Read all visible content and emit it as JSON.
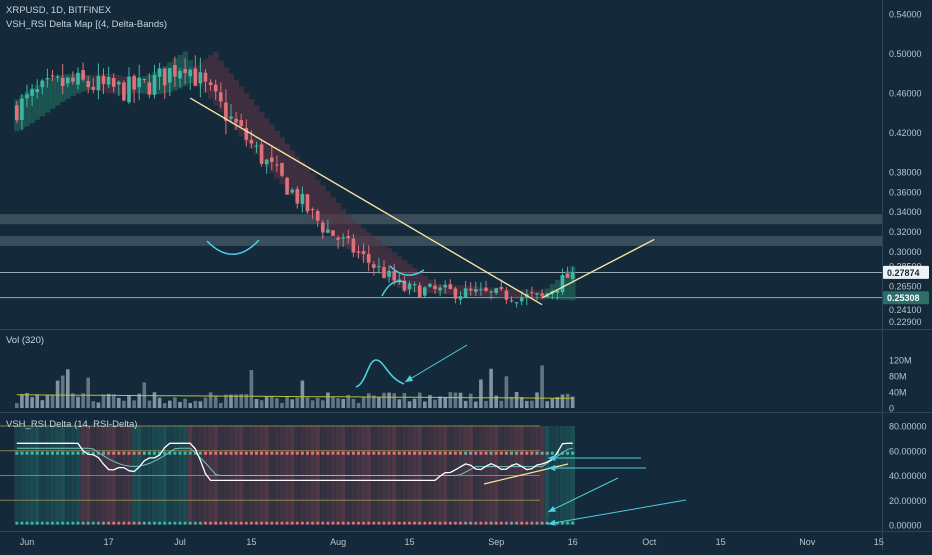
{
  "header": {
    "symbol_line": "XRPUSD, 1D, BITFINEX",
    "indicator_line": "VSH_RSI Delta Map [(4, Delta-Bands)"
  },
  "volume_pane": {
    "label": "Vol (320)"
  },
  "rsi_pane": {
    "label": "VSH_RSI Delta (14, RSI-Delta)"
  },
  "colors": {
    "background": "#142a3a",
    "bull": "#3fb6a4",
    "bear": "#e0707a",
    "trendline": "#f2e3a0",
    "support_band": "#9aa8b3",
    "annotation": "#4dd0e1",
    "rsi_line": "#ffffff"
  },
  "chart_data": [
    {
      "type": "candlestick",
      "pane": "price",
      "y_ticks": [
        "0.54000",
        "0.50000",
        "0.46000",
        "0.42000",
        "0.38000",
        "0.36000",
        "0.34000",
        "0.32000",
        "0.30000",
        "0.28500",
        "0.26500",
        "0.24100",
        "0.22900"
      ],
      "price_markers": [
        {
          "label": "0.27874",
          "value": 0.27874,
          "style": "white"
        },
        {
          "label": "0.25308",
          "value": 0.25308,
          "style": "teal"
        }
      ],
      "horizontal_levels": [
        0.3325,
        0.3105,
        0.2785,
        0.2531
      ],
      "key_closes": [
        {
          "date": "Jul 02",
          "value": 0.49
        },
        {
          "date": "Jul 17",
          "value": 0.395
        },
        {
          "date": "Jul 29",
          "value": 0.325
        },
        {
          "date": "Aug 14",
          "value": 0.262
        },
        {
          "date": "Sep 10",
          "value": 0.253
        },
        {
          "date": "Sep 16",
          "value": 0.279
        }
      ],
      "trendlines": [
        {
          "from": {
            "date": "Jul 03",
            "value": 0.455
          },
          "to": {
            "date": "Sep 10",
            "value": 0.246
          }
        },
        {
          "from": {
            "date": "Sep 10",
            "value": 0.253
          },
          "to": {
            "date": "Oct 02",
            "value": 0.312
          }
        }
      ]
    },
    {
      "type": "bar",
      "pane": "volume",
      "y_ticks": [
        "120M",
        "80M",
        "40M",
        "0"
      ],
      "ylim": [
        0,
        120
      ]
    },
    {
      "type": "line",
      "pane": "rsi_delta",
      "y_ticks": [
        "80.00000",
        "60.00000",
        "40.00000",
        "20.00000",
        "0.00000"
      ],
      "ylim": [
        0,
        80
      ],
      "bands": [
        80,
        60,
        40,
        20
      ]
    }
  ],
  "x_axis": {
    "ticks": [
      {
        "label": "Jun",
        "date": "Jun 01"
      },
      {
        "label": "17",
        "date": "Jun 17"
      },
      {
        "label": "Jul",
        "date": "Jul 01"
      },
      {
        "label": "15",
        "date": "Jul 15"
      },
      {
        "label": "Aug",
        "date": "Aug 01"
      },
      {
        "label": "15",
        "date": "Aug 15"
      },
      {
        "label": "Sep",
        "date": "Sep 01"
      },
      {
        "label": "16",
        "date": "Sep 16"
      },
      {
        "label": "Oct",
        "date": "Oct 01"
      },
      {
        "label": "15",
        "date": "Oct 15"
      },
      {
        "label": "Nov",
        "date": "Nov 01"
      },
      {
        "label": "15",
        "date": "Nov 15"
      }
    ]
  }
}
